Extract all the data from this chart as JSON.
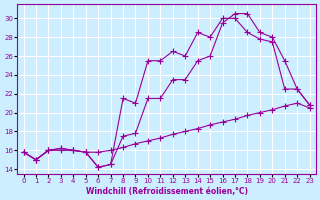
{
  "background_color": "#cceeff",
  "grid_color": "#ffffff",
  "line_color": "#990099",
  "xlabel": "Windchill (Refroidissement éolien,°C)",
  "xlim": [
    -0.5,
    23.5
  ],
  "ylim": [
    13.5,
    31.5
  ],
  "xticks": [
    0,
    1,
    2,
    3,
    4,
    5,
    6,
    7,
    8,
    9,
    10,
    11,
    12,
    13,
    14,
    15,
    16,
    17,
    18,
    19,
    20,
    21,
    22,
    23
  ],
  "yticks": [
    14,
    16,
    18,
    20,
    22,
    24,
    26,
    28,
    30
  ],
  "series1_x": [
    0,
    1,
    2,
    3,
    4,
    5,
    6,
    7,
    8,
    9,
    10,
    11,
    12,
    13,
    14,
    15,
    16,
    17,
    18,
    19,
    20,
    21,
    22,
    23
  ],
  "series1_y": [
    15.8,
    15.0,
    16.0,
    16.2,
    16.0,
    15.8,
    15.8,
    16.0,
    16.3,
    16.7,
    17.0,
    17.3,
    17.7,
    18.0,
    18.3,
    18.7,
    19.0,
    19.3,
    19.7,
    20.0,
    20.3,
    20.7,
    21.0,
    20.5
  ],
  "series2_x": [
    0,
    1,
    2,
    3,
    4,
    5,
    6,
    7,
    8,
    9,
    10,
    11,
    12,
    13,
    14,
    15,
    16,
    17,
    18,
    19,
    20,
    21,
    22,
    23
  ],
  "series2_y": [
    15.8,
    15.0,
    16.0,
    16.0,
    16.0,
    15.8,
    14.2,
    14.5,
    21.5,
    21.0,
    25.5,
    25.5,
    26.5,
    26.0,
    28.5,
    28.0,
    30.0,
    30.0,
    28.5,
    27.8,
    27.5,
    22.5,
    22.5,
    20.8
  ],
  "series3_x": [
    0,
    1,
    2,
    3,
    4,
    5,
    6,
    7,
    8,
    9,
    10,
    11,
    12,
    13,
    14,
    15,
    16,
    17,
    18,
    19,
    20,
    21,
    22,
    23
  ],
  "series3_y": [
    15.8,
    15.0,
    16.0,
    16.2,
    16.0,
    15.8,
    14.2,
    14.5,
    17.5,
    17.8,
    21.5,
    21.5,
    23.5,
    23.5,
    25.5,
    26.0,
    29.5,
    30.5,
    30.5,
    28.5,
    28.0,
    25.5,
    22.5,
    20.8
  ],
  "tick_fontsize": 5,
  "xlabel_fontsize": 5.5
}
